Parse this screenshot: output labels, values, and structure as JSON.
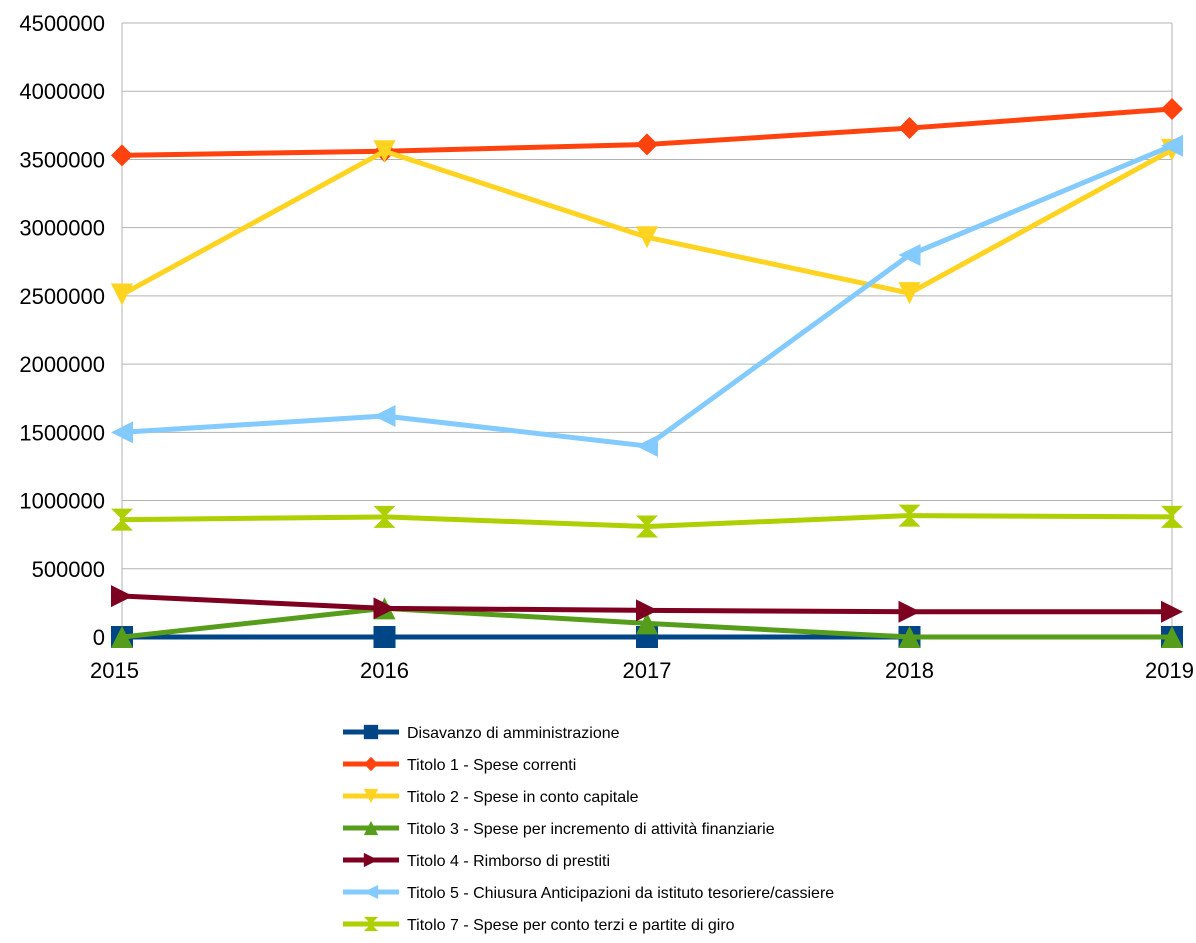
{
  "chart_data": {
    "type": "line",
    "x": [
      "2015",
      "2016",
      "2017",
      "2018",
      "2019"
    ],
    "ylim": [
      0,
      4500000
    ],
    "yticks": [
      0,
      500000,
      1000000,
      1500000,
      2000000,
      2500000,
      3000000,
      3500000,
      4000000,
      4500000
    ],
    "ytick_labels": [
      "0",
      "500000",
      "1000000",
      "1500000",
      "2000000",
      "2500000",
      "3000000",
      "3500000",
      "4000000",
      "4500000"
    ],
    "grid": "horizontal",
    "legend_position": "bottom",
    "series": [
      {
        "name": "Disavanzo di amministrazione",
        "color": "#004586",
        "marker": "square",
        "values": [
          0,
          0,
          0,
          0,
          0
        ]
      },
      {
        "name": "Titolo 1 - Spese correnti",
        "color": "#ff420e",
        "marker": "diamond",
        "values": [
          3530000,
          3560000,
          3610000,
          3730000,
          3870000
        ]
      },
      {
        "name": "Titolo 2 - Spese in conto capitale",
        "color": "#ffd320",
        "marker": "triangle-down",
        "values": [
          2510000,
          3560000,
          2930000,
          2520000,
          3570000
        ]
      },
      {
        "name": "Titolo 3 - Spese per incremento di attività finanziarie",
        "color": "#579d1c",
        "marker": "triangle-up",
        "values": [
          0,
          210000,
          100000,
          0,
          0
        ]
      },
      {
        "name": "Titolo 4 - Rimborso di prestiti",
        "color": "#7e0021",
        "marker": "triangle-right",
        "values": [
          300000,
          210000,
          195000,
          185000,
          185000
        ]
      },
      {
        "name": "Titolo 5 - Chiusura Anticipazioni da istituto tesoriere/cassiere",
        "color": "#83caff",
        "marker": "triangle-left",
        "values": [
          1500000,
          1620000,
          1400000,
          2800000,
          3600000
        ]
      },
      {
        "name": "Titolo 7 - Spese per conto terzi e partite di giro",
        "color": "#aecf00",
        "marker": "bowtie",
        "values": [
          860000,
          880000,
          810000,
          890000,
          880000
        ]
      }
    ]
  }
}
